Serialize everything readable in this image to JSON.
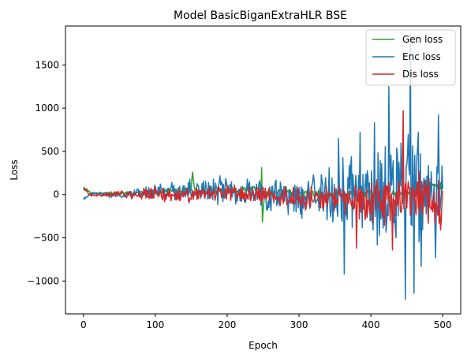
{
  "chart_data": {
    "type": "line",
    "title": "Model BasicBiganExtraHLR BSE",
    "xlabel": "Epoch",
    "ylabel": "Loss",
    "xlim": [
      -25,
      525
    ],
    "ylim": [
      -1380,
      1950
    ],
    "xticks": [
      0,
      100,
      200,
      300,
      400,
      500
    ],
    "yticks": [
      -1000,
      -500,
      0,
      500,
      1000,
      1500
    ],
    "legend_position": "top-right",
    "grid": false,
    "series_keypoints": [
      {
        "name": "Gen loss",
        "color": "#2ca02c",
        "knots": [
          [
            0,
            90
          ],
          [
            10,
            20
          ],
          [
            50,
            15
          ],
          [
            100,
            30
          ],
          [
            150,
            60
          ],
          [
            152,
            260
          ],
          [
            155,
            40
          ],
          [
            200,
            40
          ],
          [
            247,
            60
          ],
          [
            248,
            310
          ],
          [
            249,
            -320
          ],
          [
            252,
            20
          ],
          [
            300,
            30
          ],
          [
            350,
            10
          ],
          [
            400,
            0
          ],
          [
            450,
            20
          ],
          [
            480,
            120
          ],
          [
            500,
            80
          ]
        ],
        "amp_knots": [
          [
            0,
            15
          ],
          [
            100,
            30
          ],
          [
            200,
            45
          ],
          [
            300,
            45
          ],
          [
            400,
            60
          ],
          [
            500,
            80
          ]
        ]
      },
      {
        "name": "Enc loss",
        "color": "#1f77b4",
        "knots": [
          [
            0,
            -50
          ],
          [
            10,
            10
          ],
          [
            50,
            -10
          ],
          [
            100,
            30
          ],
          [
            200,
            50
          ],
          [
            250,
            30
          ],
          [
            300,
            -30
          ],
          [
            350,
            20
          ],
          [
            400,
            -30
          ],
          [
            430,
            80
          ],
          [
            450,
            100
          ],
          [
            480,
            -20
          ],
          [
            500,
            60
          ]
        ],
        "amp_knots": [
          [
            0,
            15
          ],
          [
            50,
            40
          ],
          [
            100,
            100
          ],
          [
            150,
            160
          ],
          [
            200,
            180
          ],
          [
            250,
            230
          ],
          [
            300,
            260
          ],
          [
            350,
            450
          ],
          [
            400,
            550
          ],
          [
            420,
            750
          ],
          [
            440,
            700
          ],
          [
            460,
            850
          ],
          [
            480,
            500
          ],
          [
            500,
            400
          ]
        ],
        "spikes": [
          [
            355,
            650
          ],
          [
            363,
            -920
          ],
          [
            385,
            720
          ],
          [
            405,
            830
          ],
          [
            425,
            1250
          ],
          [
            448,
            -1210
          ],
          [
            455,
            1850
          ],
          [
            460,
            -1140
          ],
          [
            470,
            -830
          ],
          [
            490,
            -730
          ],
          [
            494,
            920
          ]
        ]
      },
      {
        "name": "Dis loss",
        "color": "#d62728",
        "knots": [
          [
            0,
            80
          ],
          [
            10,
            -10
          ],
          [
            50,
            10
          ],
          [
            100,
            0
          ],
          [
            150,
            -20
          ],
          [
            200,
            20
          ],
          [
            250,
            -10
          ],
          [
            300,
            -40
          ],
          [
            350,
            -60
          ],
          [
            400,
            -80
          ],
          [
            450,
            -50
          ],
          [
            500,
            -60
          ]
        ],
        "amp_knots": [
          [
            0,
            15
          ],
          [
            50,
            40
          ],
          [
            100,
            100
          ],
          [
            150,
            110
          ],
          [
            200,
            110
          ],
          [
            250,
            120
          ],
          [
            300,
            140
          ],
          [
            350,
            200
          ],
          [
            400,
            300
          ],
          [
            450,
            380
          ],
          [
            500,
            300
          ]
        ],
        "spikes": [
          [
            380,
            -620
          ],
          [
            445,
            970
          ],
          [
            430,
            -640
          ],
          [
            497,
            -410
          ]
        ]
      }
    ]
  }
}
